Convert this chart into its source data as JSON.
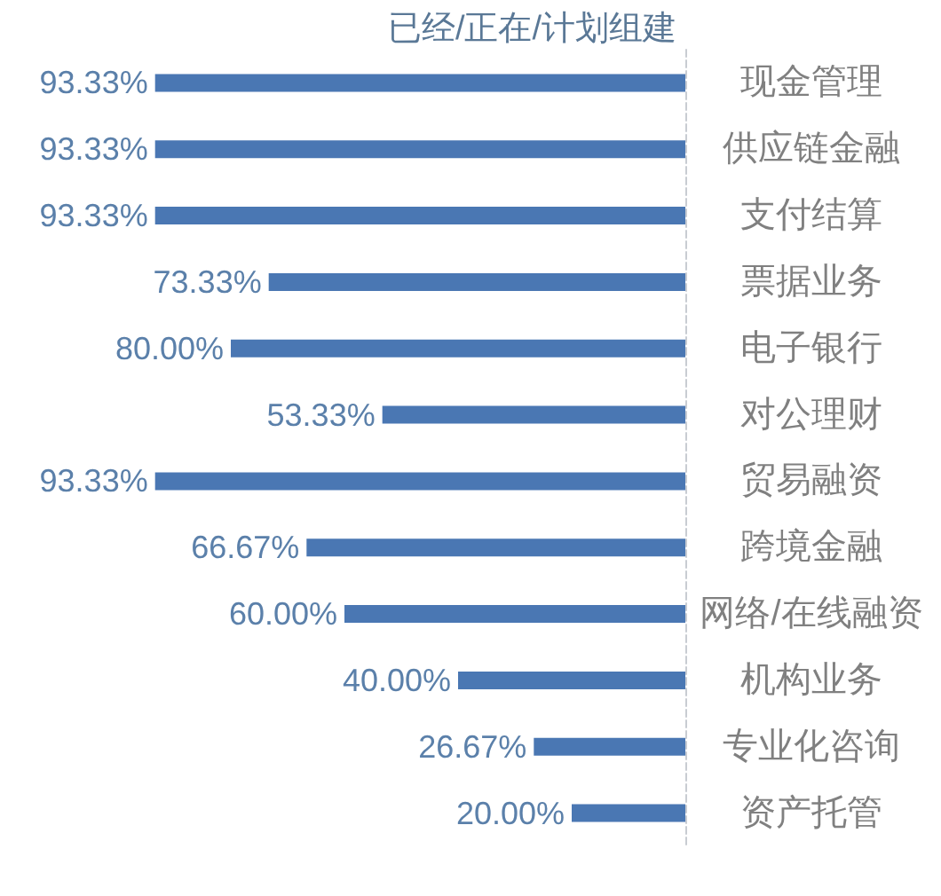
{
  "chart_data": {
    "type": "bar",
    "orientation": "horizontal",
    "title": "已经/正在/计划组建",
    "categories": [
      "现金管理",
      "供应链金融",
      "支付结算",
      "票据业务",
      "电子银行",
      "对公理财",
      "贸易融资",
      "跨境金融",
      "网络/在线融资",
      "机构业务",
      "专业化咨询",
      "资产托管"
    ],
    "values": [
      93.33,
      93.33,
      93.33,
      73.33,
      80.0,
      53.33,
      93.33,
      66.67,
      60.0,
      40.0,
      26.67,
      20.0
    ],
    "value_labels": [
      "93.33%",
      "93.33%",
      "93.33%",
      "73.33%",
      "80.00%",
      "53.33%",
      "93.33%",
      "66.67%",
      "60.00%",
      "40.00%",
      "26.67%",
      "20.00%"
    ],
    "color": "#4a77b3"
  }
}
